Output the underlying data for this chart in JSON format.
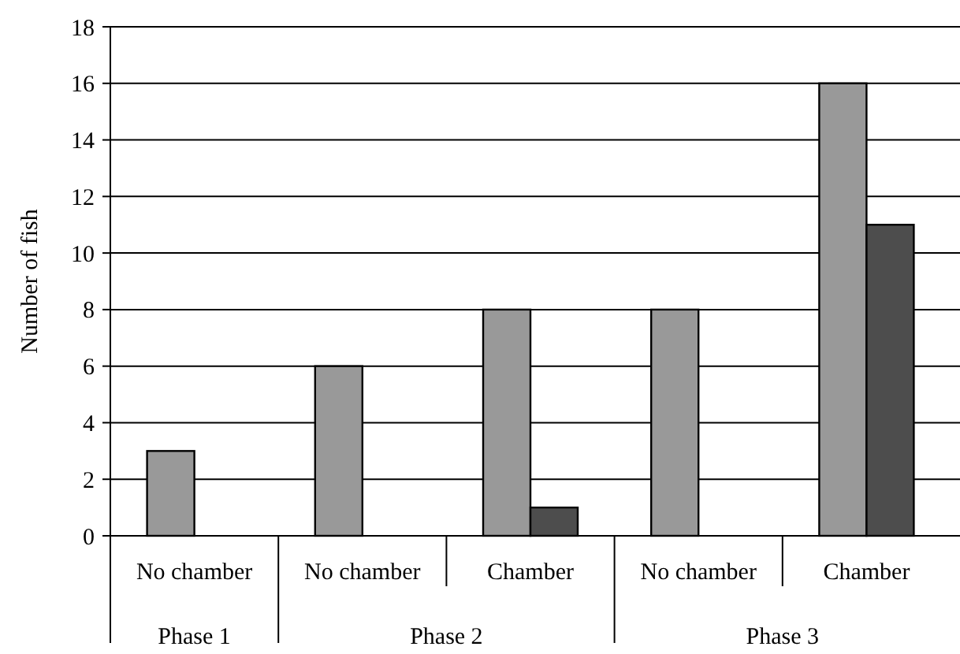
{
  "chart_data": {
    "type": "bar",
    "ylabel": "Number of fish",
    "categories": [
      "No chamber",
      "No chamber",
      "Chamber",
      "No chamber",
      "Chamber"
    ],
    "series": [
      {
        "color": "#999999",
        "values": [
          3,
          6,
          8,
          8,
          16
        ]
      },
      {
        "color": "#4d4d4d",
        "values": [
          null,
          null,
          1,
          null,
          11
        ]
      }
    ],
    "ylim": [
      0,
      18
    ],
    "yticks": [
      0,
      2,
      4,
      6,
      8,
      10,
      12,
      14,
      16,
      18
    ],
    "grid": "y",
    "annotations": [
      "Phase 1",
      "Phase 2",
      "Phase 3"
    ]
  }
}
